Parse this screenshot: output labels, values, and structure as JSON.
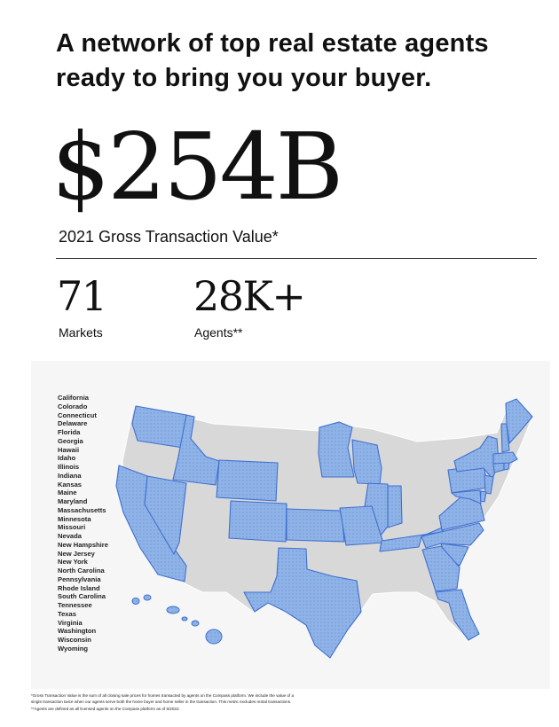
{
  "headline": {
    "line1": "A network of top real estate agents",
    "line2": "ready to bring you your buyer."
  },
  "gross_transaction": {
    "value": "$254B",
    "label": "2021 Gross Transaction Value*"
  },
  "stats": [
    {
      "value": "71",
      "label": "Markets"
    },
    {
      "value": "28K+",
      "label": "Agents**"
    }
  ],
  "map": {
    "states": [
      "California",
      "Colorado",
      "Connecticut",
      "Delaware",
      "Florida",
      "Georgia",
      "Hawaii",
      "Idaho",
      "Illinois",
      "Indiana",
      "Kansas",
      "Maine",
      "Maryland",
      "Massachusetts",
      "Minnesota",
      "Missouri",
      "Nevada",
      "New Hampshire",
      "New Jersey",
      "New York",
      "North Carolina",
      "Pennsylvania",
      "Rhode Island",
      "South Carolina",
      "Tennessee",
      "Texas",
      "Virginia",
      "Washington",
      "Wisconsin",
      "Wyoming"
    ],
    "colors": {
      "highlight": "#8fb3e6",
      "highlight_border": "#3f6fd1",
      "base": "#d8d8d8",
      "base_border": "#ffffff",
      "panel": "#f6f6f6"
    }
  },
  "footnotes": [
    "*Gross Transaction Value is the sum of all closing sale prices for homes transacted by agents on the Compass platform. We include the value of a",
    "single transaction twice when our agents serve both the home buyer and home seller in the transaction. This metric excludes rental transactions.",
    "**Agents are defined as all licensed agents on the Compass platform as of 6/2022."
  ]
}
